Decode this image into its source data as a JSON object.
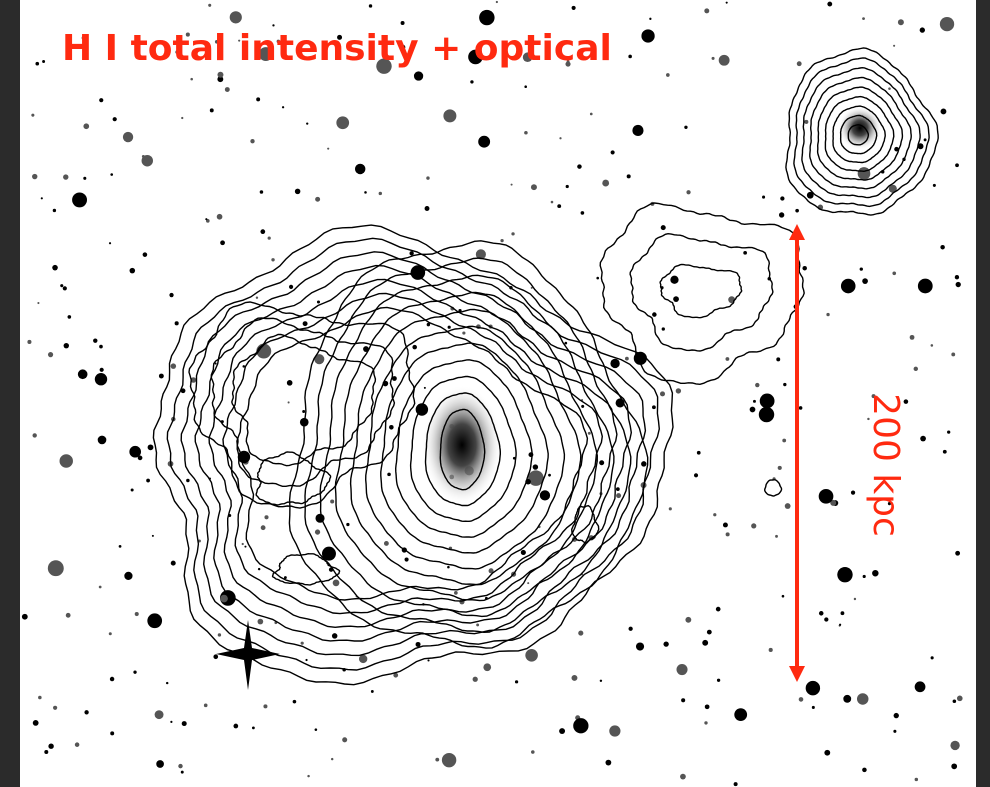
{
  "title": "H I total intensity + optical",
  "scale_bar": {
    "label": "200 kpc"
  }
}
